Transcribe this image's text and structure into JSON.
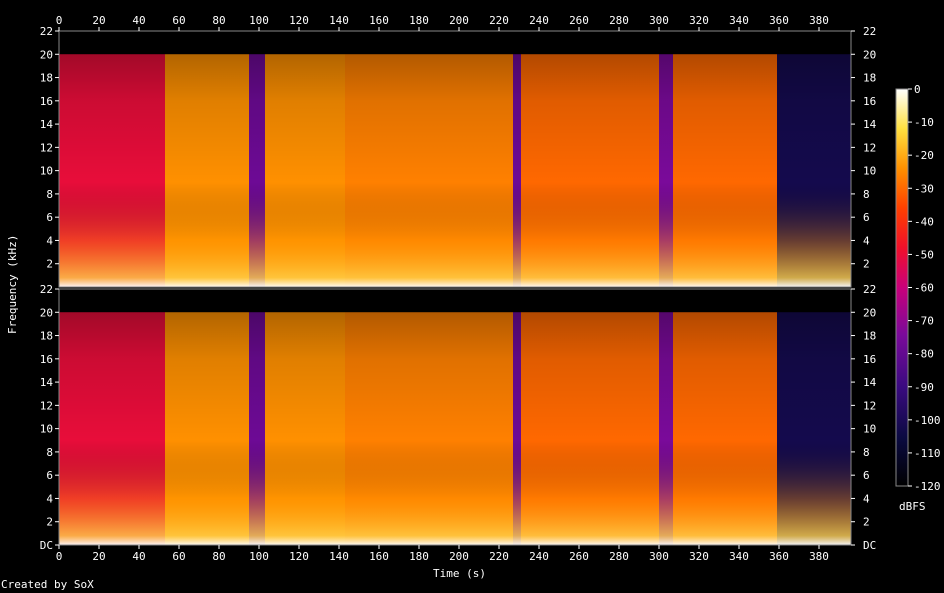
{
  "credit": "Created by SoX",
  "chart_data": {
    "type": "heatmap",
    "title": "",
    "xlabel": "Time (s)",
    "ylabel": "Frequency (kHz)",
    "colorbar_label": "dBFS",
    "xlim": [
      0,
      396
    ],
    "ylim_khz": [
      0,
      22
    ],
    "x_ticks": [
      "0",
      "20",
      "40",
      "60",
      "80",
      "100",
      "120",
      "140",
      "160",
      "180",
      "200",
      "220",
      "240",
      "260",
      "280",
      "300",
      "320",
      "340",
      "360",
      "380"
    ],
    "y_ticks_top": [
      "22",
      "20",
      "18",
      "16",
      "14",
      "12",
      "10",
      "8",
      "6",
      "4",
      "2"
    ],
    "y_ticks_bottom": [
      "22",
      "20",
      "18",
      "16",
      "14",
      "12",
      "10",
      "8",
      "6",
      "4",
      "2",
      "DC"
    ],
    "colorbar_ticks": [
      "0",
      "-10",
      "-20",
      "-30",
      "-40",
      "-50",
      "-60",
      "-70",
      "-80",
      "-90",
      "-100",
      "-110",
      "-120"
    ],
    "colorbar_range_dbfs": [
      -120,
      0
    ],
    "channels": 2,
    "bandwidth_khz": 20,
    "segments": [
      {
        "start": 0,
        "end": 53,
        "level": -72
      },
      {
        "start": 53,
        "end": 95,
        "level": -50
      },
      {
        "start": 95,
        "end": 103,
        "level": -92
      },
      {
        "start": 103,
        "end": 143,
        "level": -50
      },
      {
        "start": 143,
        "end": 227,
        "level": -52
      },
      {
        "start": 227,
        "end": 231,
        "level": -92
      },
      {
        "start": 231,
        "end": 300,
        "level": -55
      },
      {
        "start": 300,
        "end": 307,
        "level": -90
      },
      {
        "start": 307,
        "end": 359,
        "level": -55
      },
      {
        "start": 359,
        "end": 396,
        "level": -108
      }
    ]
  }
}
